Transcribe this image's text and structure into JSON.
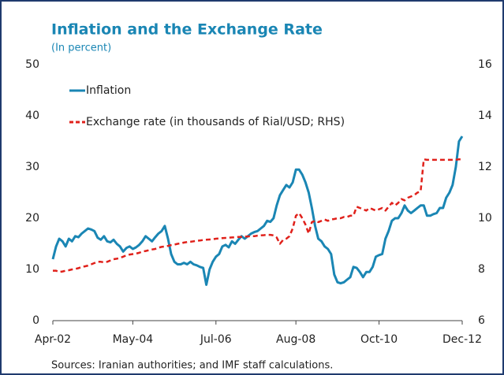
{
  "chart_data": {
    "type": "line",
    "title": "Inflation and the Exchange Rate",
    "subtitle": "(In percent)",
    "source": "Sources: Iranian authorities; and IMF staff calculations.",
    "categories": [
      "Apr-02",
      null,
      null,
      null,
      null,
      null,
      null,
      null,
      null,
      null,
      null,
      null,
      null,
      null,
      null,
      null,
      null,
      null,
      null,
      null,
      null,
      null,
      null,
      null,
      null,
      "May-04",
      null,
      null,
      null,
      null,
      null,
      null,
      null,
      null,
      null,
      null,
      null,
      null,
      null,
      null,
      null,
      null,
      null,
      null,
      null,
      null,
      null,
      null,
      null,
      null,
      null,
      "Jul-06",
      null,
      null,
      null,
      null,
      null,
      null,
      null,
      null,
      null,
      null,
      null,
      null,
      null,
      null,
      null,
      null,
      null,
      null,
      null,
      null,
      null,
      null,
      null,
      null,
      "Aug-08",
      null,
      null,
      null,
      null,
      null,
      null,
      null,
      null,
      null,
      null,
      null,
      null,
      null,
      null,
      null,
      null,
      null,
      null,
      null,
      null,
      null,
      null,
      null,
      null,
      null,
      "Oct-10",
      null,
      null,
      null,
      null,
      null,
      null,
      null,
      null,
      null,
      null,
      null,
      null,
      null,
      null,
      null,
      null,
      null,
      null,
      null,
      null,
      null,
      null,
      null,
      null,
      null,
      "Dec-12"
    ],
    "series": [
      {
        "name": "Inflation",
        "color": "#1a86b4",
        "dashed": false,
        "values": [
          12,
          14.5,
          16,
          15.5,
          14.5,
          16,
          15.5,
          16.5,
          16.3,
          17,
          17.5,
          18,
          17.8,
          17.5,
          16.2,
          15.8,
          16.5,
          15.5,
          15.3,
          15.8,
          15,
          14.5,
          13.5,
          14.2,
          14.5,
          14,
          14.3,
          14.8,
          15.5,
          16.5,
          16,
          15.5,
          16.3,
          17,
          17.5,
          18.5,
          16,
          13,
          11.5,
          11,
          11,
          11.3,
          11,
          11.5,
          11,
          10.8,
          10.5,
          10.3,
          7,
          10,
          11.5,
          12.5,
          13,
          14.5,
          14.8,
          14.3,
          15.5,
          15,
          15.8,
          16.5,
          16,
          16.5,
          17,
          17.3,
          17.5,
          18,
          18.5,
          19.5,
          19.3,
          20,
          22.5,
          24.5,
          25.5,
          26.5,
          26,
          27,
          29.5,
          29.5,
          28.5,
          27,
          25,
          22,
          18.5,
          16,
          15.5,
          14.5,
          14,
          13,
          9,
          7.5,
          7.3,
          7.5,
          8,
          8.5,
          10.5,
          10.3,
          9.5,
          8.5,
          9.5,
          9.5,
          10.5,
          12.5,
          12.8,
          13,
          16,
          17.5,
          19.5,
          20,
          20,
          21,
          22.5,
          21.5,
          21,
          21.5,
          22,
          22.5,
          22.5,
          20.5,
          20.5,
          20.8,
          21,
          22,
          22,
          24,
          25,
          26.5,
          30,
          35,
          36
        ]
      },
      {
        "name": "Exchange rate (in thousands of Rial/USD; RHS)",
        "color": "#e0211b",
        "dashed": true,
        "axis": "y2",
        "values": [
          7.95,
          7.95,
          7.9,
          7.92,
          7.95,
          7.97,
          8.0,
          8.02,
          8.05,
          8.1,
          8.12,
          8.15,
          8.2,
          8.25,
          8.3,
          8.3,
          8.28,
          8.3,
          8.35,
          8.4,
          8.42,
          8.45,
          8.5,
          8.55,
          8.58,
          8.6,
          8.62,
          8.65,
          8.7,
          8.72,
          8.75,
          8.78,
          8.8,
          8.85,
          8.88,
          8.9,
          8.92,
          8.95,
          8.97,
          9.0,
          9.02,
          9.05,
          9.07,
          9.08,
          9.1,
          9.12,
          9.13,
          9.15,
          9.16,
          9.17,
          9.18,
          9.2,
          9.21,
          9.22,
          9.23,
          9.24,
          9.25,
          9.26,
          9.27,
          9.27,
          9.28,
          9.29,
          9.3,
          9.3,
          9.32,
          9.33,
          9.34,
          9.35,
          9.35,
          9.33,
          9.25,
          9.0,
          9.15,
          9.2,
          9.3,
          9.6,
          10.1,
          10.2,
          10.0,
          9.75,
          9.4,
          9.85,
          9.9,
          9.85,
          9.9,
          9.95,
          9.9,
          9.95,
          9.97,
          10.0,
          10.0,
          10.05,
          10.05,
          10.1,
          10.1,
          10.45,
          10.4,
          10.35,
          10.3,
          10.4,
          10.35,
          10.3,
          10.35,
          10.4,
          10.3,
          10.45,
          10.6,
          10.5,
          10.6,
          10.75,
          10.7,
          10.8,
          10.85,
          10.9,
          11.0,
          11.05,
          12.3,
          12.28,
          12.28,
          12.28,
          12.28,
          12.28,
          12.28,
          12.28,
          12.28,
          12.28,
          12.28,
          12.3,
          12.3
        ]
      }
    ],
    "ylim": [
      0,
      50
    ],
    "yticks": [
      0,
      10,
      20,
      30,
      40,
      50
    ],
    "y2lim": [
      6,
      16
    ],
    "y2ticks": [
      6,
      8,
      10,
      12,
      14,
      16
    ],
    "grid": false,
    "legend": "upper left"
  }
}
